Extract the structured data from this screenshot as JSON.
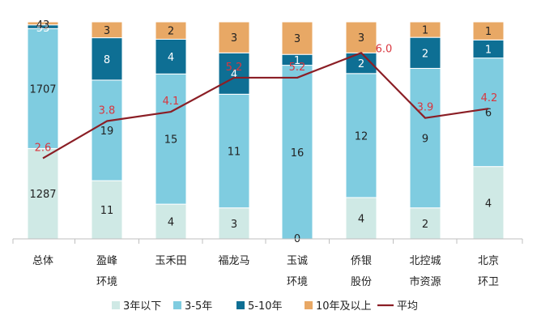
{
  "chart_data": {
    "type": "bar",
    "stacked": true,
    "categories": [
      [
        "总体"
      ],
      [
        "盈峰",
        "环境"
      ],
      [
        "玉禾田"
      ],
      [
        "福龙马"
      ],
      [
        "玉诚",
        "环境"
      ],
      [
        "侨银",
        "股份"
      ],
      [
        "北控城",
        "市资源"
      ],
      [
        "北京",
        "环卫"
      ]
    ],
    "series": [
      {
        "name": "3年以下",
        "color": "#cfe9e5",
        "values": [
          1287,
          11,
          4,
          3,
          0,
          4,
          2,
          4
        ]
      },
      {
        "name": "3-5年",
        "color": "#7fcce0",
        "values": [
          1707,
          19,
          15,
          11,
          16,
          12,
          9,
          6
        ]
      },
      {
        "name": "5-10年",
        "color": "#0e6f94",
        "values": [
          53,
          8,
          4,
          4,
          1,
          2,
          2,
          1
        ]
      },
      {
        "name": "10年及以上",
        "color": "#e8a865",
        "values": [
          43,
          3,
          2,
          3,
          3,
          3,
          1,
          1
        ]
      }
    ],
    "segment_labels": [
      [
        "1287",
        "1707",
        "53",
        "43"
      ],
      [
        "11",
        "19",
        "8",
        "3"
      ],
      [
        "4",
        "15",
        "4",
        "2"
      ],
      [
        "3",
        "11",
        "4",
        "3"
      ],
      [
        "0",
        "16",
        "1",
        "3"
      ],
      [
        "4",
        "12",
        "2",
        "3"
      ],
      [
        "2",
        "9",
        "2",
        "1"
      ],
      [
        "4",
        "6",
        "1",
        "1"
      ]
    ],
    "line": {
      "name": "平均",
      "color": "#8b1e25",
      "values": [
        2.6,
        3.8,
        4.1,
        5.2,
        5.2,
        6.0,
        3.9,
        4.2
      ],
      "labels": [
        "2.6",
        "3.8",
        "4.1",
        "5.2",
        "5.2",
        "6.0",
        "3.9",
        "4.2"
      ],
      "ylim": [
        0,
        7
      ]
    },
    "legend_position": "bottom",
    "grid": false
  }
}
